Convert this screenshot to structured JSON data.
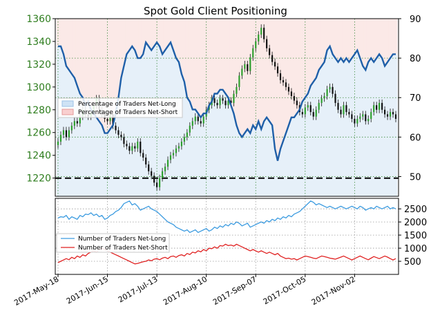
{
  "chart_data": [
    {
      "type": "line",
      "title": "Spot Gold Client Positioning",
      "y_left": {
        "ticks": [
          1220,
          1240,
          1260,
          1280,
          1300,
          1320,
          1340,
          1360
        ],
        "range": [
          1204,
          1360
        ]
      },
      "y_right": {
        "ticks": [
          50,
          60,
          70,
          80,
          90
        ],
        "range": [
          45,
          90
        ]
      },
      "x_ticks": [
        "2017-May-18",
        "2017-Jun-15",
        "2017-Jul-13",
        "2017-Aug-10",
        "2017-Sep-07",
        "2017-Oct-05",
        "2017-Nov-02"
      ],
      "grid": true,
      "legend_position": "center-left",
      "legend": [
        "Percentage of Traders Net-Long",
        "Percentage of Traders Net-Short"
      ],
      "reference_line": {
        "axis": "right",
        "value": 49.6,
        "style": "dashed"
      },
      "candles_close": [
        1252,
        1258,
        1262,
        1256,
        1262,
        1266,
        1270,
        1268,
        1274,
        1280,
        1276,
        1274,
        1278,
        1284,
        1290,
        1280,
        1276,
        1272,
        1270,
        1276,
        1266,
        1262,
        1258,
        1256,
        1250,
        1248,
        1244,
        1248,
        1246,
        1252,
        1242,
        1238,
        1232,
        1226,
        1222,
        1216,
        1212,
        1220,
        1226,
        1230,
        1236,
        1240,
        1242,
        1246,
        1248,
        1252,
        1256,
        1260,
        1266,
        1270,
        1274,
        1270,
        1268,
        1274,
        1280,
        1284,
        1290,
        1286,
        1284,
        1290,
        1288,
        1284,
        1288,
        1286,
        1294,
        1300,
        1310,
        1316,
        1320,
        1314,
        1326,
        1334,
        1340,
        1346,
        1352,
        1342,
        1334,
        1328,
        1322,
        1318,
        1312,
        1306,
        1304,
        1300,
        1296,
        1292,
        1288,
        1284,
        1278,
        1276,
        1282,
        1284,
        1278,
        1274,
        1280,
        1286,
        1290,
        1292,
        1298,
        1300,
        1294,
        1286,
        1280,
        1276,
        1284,
        1278,
        1276,
        1272,
        1268,
        1272,
        1274,
        1276,
        1270,
        1272,
        1278,
        1284,
        1280,
        1286,
        1280,
        1276,
        1274,
        1278,
        1276,
        1272
      ],
      "series": [
        {
          "name": "Percentage of Traders Net-Long",
          "color": "#1f5fa8",
          "values": [
            83,
            83,
            81,
            78,
            77,
            76,
            75,
            73,
            71,
            70,
            68,
            69,
            67,
            66,
            65,
            64,
            63,
            61,
            61,
            62,
            63,
            66,
            70,
            75,
            78,
            81,
            82,
            83,
            82,
            80,
            80,
            81,
            84,
            83,
            82,
            83,
            84,
            83,
            81,
            82,
            83,
            84,
            82,
            80,
            79,
            76,
            74,
            70,
            69,
            67,
            67,
            66,
            65,
            66,
            66,
            68,
            69,
            71,
            71,
            72,
            72,
            71,
            70,
            68,
            66,
            63,
            61,
            60,
            61,
            62,
            61,
            63,
            62,
            64,
            62,
            64,
            65,
            64,
            63,
            57,
            54,
            57,
            59,
            61,
            63,
            65,
            65,
            66,
            67,
            69,
            70,
            71,
            73,
            74,
            75,
            77,
            78,
            79,
            82,
            83,
            81,
            80,
            79,
            80,
            79,
            80,
            79,
            80,
            81,
            82,
            80,
            78,
            77,
            79,
            80,
            79,
            80,
            81,
            80,
            78,
            79,
            80,
            81,
            81
          ]
        },
        {
          "name": "Percentage of Traders Net-Short",
          "color": "#d94040",
          "values": [
            17,
            17,
            19,
            22,
            23,
            24,
            25,
            27,
            29,
            30,
            32,
            31,
            33,
            34,
            35,
            36,
            37,
            39,
            39,
            38,
            37,
            34,
            30,
            25,
            22,
            19,
            18,
            17,
            18,
            20,
            20,
            19,
            16,
            17,
            18,
            17,
            16,
            17,
            19,
            18,
            17,
            16,
            18,
            20,
            21,
            24,
            26,
            30,
            31,
            33,
            33,
            34,
            35,
            34,
            34,
            32,
            31,
            29,
            29,
            28,
            28,
            29,
            30,
            32,
            34,
            37,
            39,
            40,
            39,
            38,
            39,
            37,
            38,
            36,
            38,
            36,
            35,
            36,
            37,
            43,
            46,
            43,
            41,
            39,
            37,
            35,
            35,
            34,
            33,
            31,
            30,
            29,
            27,
            26,
            25,
            23,
            22,
            21,
            18,
            17,
            19,
            20,
            21,
            20,
            21,
            20,
            21,
            20,
            19,
            18,
            20,
            22,
            23,
            21,
            20,
            21,
            20,
            19,
            20,
            22,
            21,
            20,
            19,
            19
          ]
        }
      ]
    },
    {
      "type": "line",
      "y": {
        "ticks": [
          500,
          1000,
          1500,
          2000,
          2500
        ],
        "range": [
          0,
          2900
        ]
      },
      "x_ticks": [
        "2017-May-18",
        "2017-Jun-15",
        "2017-Jul-13",
        "2017-Aug-10",
        "2017-Sep-07",
        "2017-Oct-05",
        "2017-Nov-02"
      ],
      "grid": true,
      "legend_position": "center-left",
      "series": [
        {
          "name": "Number of Traders Net-Long",
          "color": "#3b9be0",
          "values": [
            2150,
            2200,
            2180,
            2250,
            2100,
            2200,
            2150,
            2100,
            2250,
            2200,
            2300,
            2280,
            2350,
            2250,
            2300,
            2200,
            2250,
            2100,
            2150,
            2250,
            2300,
            2400,
            2450,
            2550,
            2700,
            2750,
            2800,
            2650,
            2700,
            2600,
            2450,
            2500,
            2550,
            2600,
            2500,
            2450,
            2400,
            2300,
            2200,
            2100,
            2000,
            1950,
            1900,
            1800,
            1750,
            1700,
            1650,
            1700,
            1600,
            1650,
            1700,
            1600,
            1650,
            1700,
            1750,
            1650,
            1700,
            1800,
            1750,
            1850,
            1800,
            1900,
            1850,
            1950,
            1900,
            2000,
            1950,
            1850,
            1900,
            1950,
            1800,
            1850,
            1900,
            1950,
            2000,
            1950,
            2050,
            2000,
            2100,
            2050,
            2150,
            2100,
            2200,
            2150,
            2250,
            2200,
            2300,
            2350,
            2400,
            2500,
            2600,
            2700,
            2800,
            2750,
            2650,
            2700,
            2650,
            2600,
            2550,
            2600,
            2550,
            2500,
            2550,
            2600,
            2550,
            2500,
            2550,
            2600,
            2550,
            2500,
            2600,
            2550,
            2450,
            2500,
            2550,
            2500,
            2600,
            2550,
            2500,
            2550,
            2600,
            2500,
            2550,
            2500
          ]
        },
        {
          "name": "Number of Traders Net-Short",
          "color": "#e02020",
          "values": [
            450,
            500,
            550,
            600,
            560,
            650,
            600,
            700,
            650,
            750,
            700,
            800,
            850,
            900,
            850,
            950,
            1000,
            950,
            900,
            850,
            800,
            750,
            700,
            650,
            600,
            550,
            500,
            450,
            400,
            420,
            450,
            480,
            500,
            550,
            520,
            580,
            600,
            560,
            620,
            650,
            600,
            680,
            700,
            650,
            720,
            750,
            700,
            800,
            760,
            850,
            820,
            900,
            860,
            950,
            900,
            1000,
            980,
            1050,
            1000,
            1100,
            1080,
            1150,
            1100,
            1120,
            1080,
            1150,
            1100,
            1050,
            1000,
            950,
            900,
            950,
            900,
            850,
            900,
            850,
            800,
            850,
            800,
            750,
            800,
            700,
            650,
            600,
            620,
            580,
            600,
            550,
            600,
            650,
            700,
            680,
            650,
            620,
            600,
            650,
            700,
            680,
            650,
            620,
            600,
            580,
            620,
            660,
            700,
            650,
            600,
            550,
            600,
            650,
            700,
            650,
            600,
            560,
            620,
            680,
            640,
            600,
            650,
            700,
            660,
            600,
            550,
            600
          ]
        }
      ]
    }
  ]
}
